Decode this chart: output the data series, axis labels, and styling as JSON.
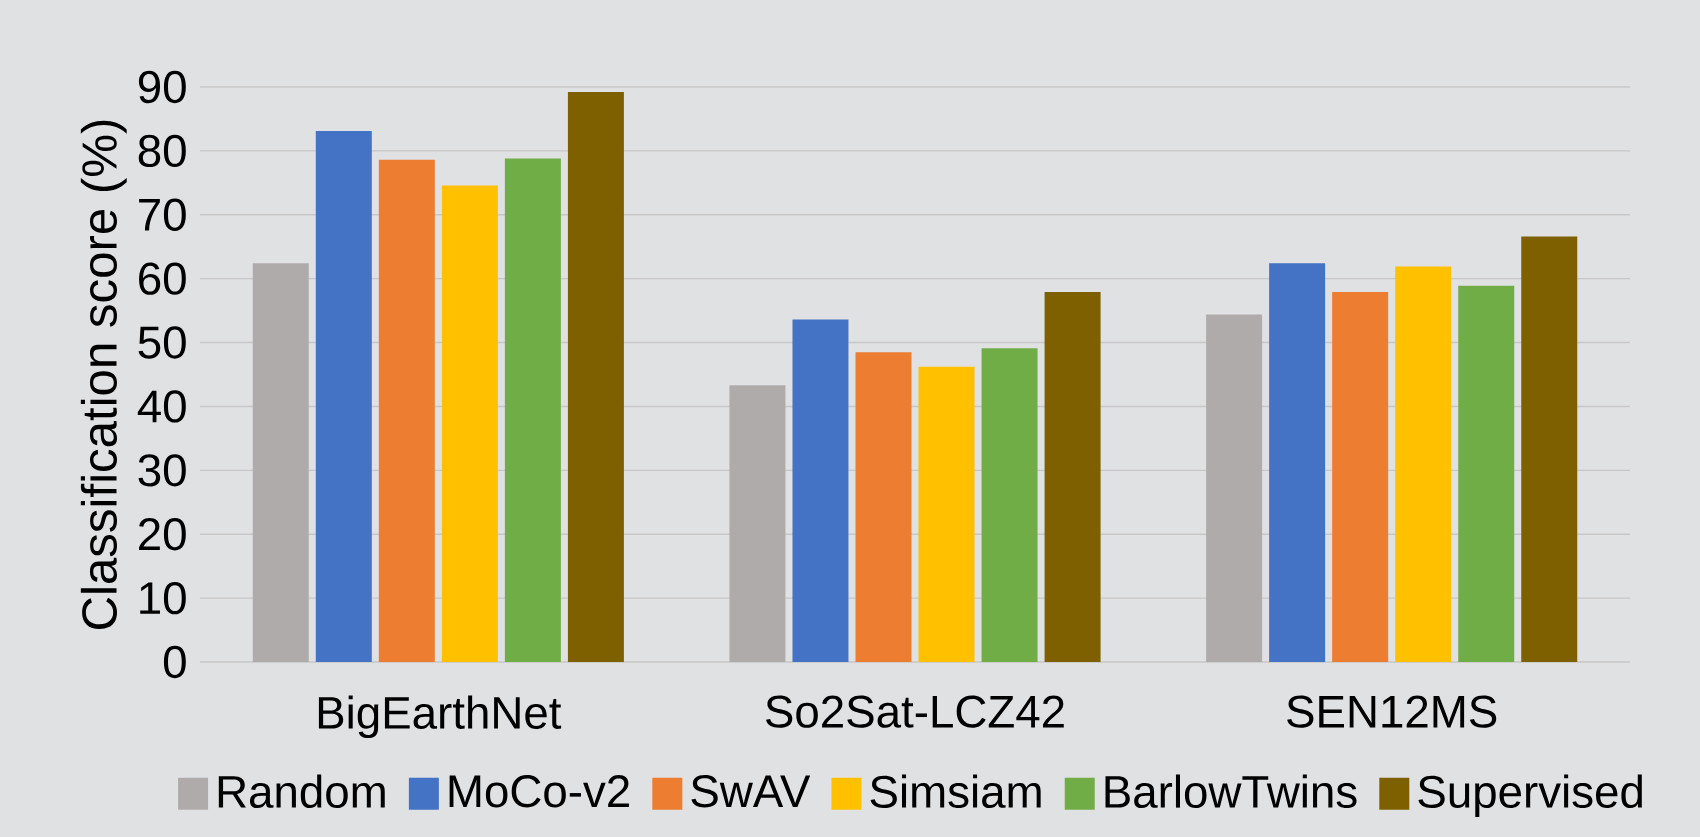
{
  "chart_data": {
    "type": "bar",
    "ylabel": "Classification score (%)",
    "categories": [
      "BigEarthNet",
      "So2Sat-LCZ42",
      "SEN12MS"
    ],
    "series": [
      {
        "name": "Random",
        "color": "#afabab",
        "values": [
          62.4,
          43.3,
          54.4
        ]
      },
      {
        "name": "MoCo-v2",
        "color": "#4472c4",
        "values": [
          83.1,
          53.6,
          62.4
        ]
      },
      {
        "name": "SwAV",
        "color": "#ed7d31",
        "values": [
          78.6,
          48.5,
          57.9
        ]
      },
      {
        "name": "Simsiam",
        "color": "#ffc000",
        "values": [
          74.6,
          46.2,
          61.9
        ]
      },
      {
        "name": "BarlowTwins",
        "color": "#70ad47",
        "values": [
          78.8,
          49.1,
          58.9
        ]
      },
      {
        "name": "Supervised",
        "color": "#7f6000",
        "values": [
          89.2,
          57.9,
          66.6
        ]
      }
    ],
    "ylim": [
      0,
      90
    ],
    "yticks": [
      0,
      10,
      20,
      30,
      40,
      50,
      60,
      70,
      80,
      90
    ],
    "grid": "y",
    "legend": "bottom"
  }
}
